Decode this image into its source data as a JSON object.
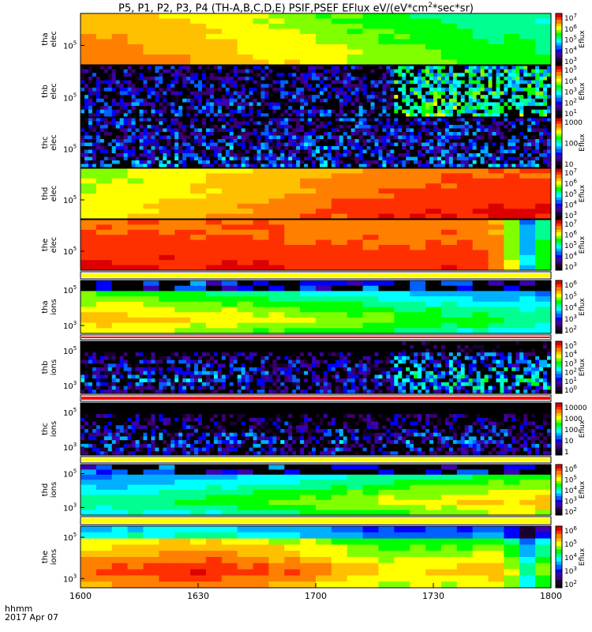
{
  "title_parts": [
    "P5, P1, P2, P3, P4 (TH-A,B,C,D,E) PSIF,PSEF EFlux eV/(eV*cm",
    "2",
    "*sec*sr)"
  ],
  "footer": {
    "hhmm": "hhmm",
    "date": "2017 Apr 07"
  },
  "colors": {
    "rainbow": [
      "#000000",
      "#1a0030",
      "#3a0070",
      "#3c00b0",
      "#0000ff",
      "#0060ff",
      "#00b0ff",
      "#00ffff",
      "#00ff90",
      "#00ff00",
      "#80ff00",
      "#ffff00",
      "#ffc000",
      "#ff8000",
      "#ff3000",
      "#dd0000"
    ],
    "divider_fill": "#ffff00",
    "divider_ions": "#ff0000"
  },
  "chart_data": {
    "type": "heatmap",
    "x_ticks": [
      "1600",
      "1630",
      "1700",
      "1730",
      "1800"
    ],
    "x_range": [
      1600,
      1800
    ],
    "cbar_label": "Eflux",
    "panels": [
      {
        "id": "tha-elec",
        "ylabel": [
          "tha",
          "elec"
        ],
        "ytick": [
          "10",
          "5"
        ],
        "cbar_ticks": [
          [
            "10",
            "7"
          ],
          [
            "10",
            "6"
          ],
          [
            "10",
            "5"
          ],
          [
            "10",
            "4"
          ],
          [
            "10",
            "3"
          ]
        ],
        "mean_level": [
          0.86,
          0.86,
          0.85,
          0.85,
          0.84,
          0.83,
          0.82,
          0.81,
          0.8,
          0.79,
          0.77,
          0.76,
          0.75,
          0.74,
          0.72,
          0.71,
          0.7,
          0.69,
          0.68,
          0.67,
          0.66,
          0.65,
          0.64,
          0.63,
          0.62,
          0.61,
          0.6,
          0.6,
          0.59,
          0.58
        ]
      },
      {
        "id": "thb-elec",
        "ylabel": [
          "thb",
          "elec"
        ],
        "ytick": [
          "10",
          "5"
        ],
        "cbar_ticks": [
          [
            "10",
            "5"
          ],
          [
            "10",
            "4"
          ],
          [
            "10",
            "3"
          ],
          [
            "10",
            "2"
          ],
          [
            "10",
            "1"
          ]
        ],
        "mean_level": [
          0.25,
          0.25,
          0.25,
          0.25,
          0.25,
          0.25,
          0.25,
          0.25,
          0.25,
          0.25,
          0.25,
          0.25,
          0.25,
          0.25,
          0.25,
          0.25,
          0.25,
          0.25,
          0.25,
          0.25,
          0.55,
          0.55,
          0.55,
          0.55,
          0.55,
          0.55,
          0.55,
          0.55,
          0.55,
          0.55
        ]
      },
      {
        "id": "thc-elec",
        "ylabel": [
          "thc",
          "elec"
        ],
        "ytick": [
          "10",
          "5"
        ],
        "cbar_ticks": [
          [
            "1000",
            ""
          ],
          [
            "100",
            ""
          ],
          [
            "10",
            ""
          ]
        ],
        "mean_level": [
          0.3,
          0.3,
          0.3,
          0.3,
          0.3,
          0.3,
          0.3,
          0.3,
          0.3,
          0.3,
          0.3,
          0.3,
          0.3,
          0.3,
          0.3,
          0.3,
          0.3,
          0.3,
          0.3,
          0.3,
          0.3,
          0.3,
          0.3,
          0.3,
          0.3,
          0.3,
          0.3,
          0.3,
          0.3,
          0.3
        ]
      },
      {
        "id": "thd-elec",
        "ylabel": [
          "thd",
          "elec"
        ],
        "ytick": [
          "10",
          "5"
        ],
        "cbar_ticks": [
          [
            "10",
            "7"
          ],
          [
            "10",
            "6"
          ],
          [
            "10",
            "5"
          ],
          [
            "10",
            "4"
          ],
          [
            "10",
            "3"
          ]
        ],
        "mean_level": [
          0.74,
          0.74,
          0.75,
          0.76,
          0.77,
          0.78,
          0.79,
          0.8,
          0.81,
          0.82,
          0.83,
          0.84,
          0.85,
          0.86,
          0.87,
          0.88,
          0.89,
          0.9,
          0.91,
          0.92,
          0.92,
          0.93,
          0.93,
          0.94,
          0.94,
          0.94,
          0.95,
          0.95,
          0.95,
          0.95
        ]
      },
      {
        "id": "the-elec",
        "ylabel": [
          "the",
          "elec"
        ],
        "ytick": [
          "10",
          "5"
        ],
        "cbar_ticks": [
          [
            "10",
            "7"
          ],
          [
            "10",
            "6"
          ],
          [
            "10",
            "5"
          ],
          [
            "10",
            "4"
          ],
          [
            "10",
            "3"
          ]
        ],
        "mean_level": [
          0.94,
          0.94,
          0.94,
          0.94,
          0.94,
          0.94,
          0.94,
          0.94,
          0.94,
          0.94,
          0.94,
          0.94,
          0.94,
          0.93,
          0.92,
          0.92,
          0.92,
          0.92,
          0.92,
          0.92,
          0.92,
          0.92,
          0.92,
          0.92,
          0.92,
          0.9,
          0.88,
          0.7,
          0.45,
          0.6
        ]
      },
      {
        "id": "tha-ions",
        "ylabel": [
          "tha",
          "ions"
        ],
        "ytick": [
          "10",
          "5"
        ],
        "ytick2": [
          "10",
          "3"
        ],
        "cbar_ticks": [
          [
            "10",
            "6"
          ],
          [
            "10",
            "5"
          ],
          [
            "10",
            "4"
          ],
          [
            "10",
            "3"
          ],
          [
            "10",
            "2"
          ]
        ],
        "mean_level": [
          0.8,
          0.8,
          0.79,
          0.78,
          0.78,
          0.77,
          0.76,
          0.75,
          0.74,
          0.74,
          0.73,
          0.72,
          0.71,
          0.7,
          0.69,
          0.68,
          0.67,
          0.66,
          0.65,
          0.65,
          0.64,
          0.63,
          0.62,
          0.61,
          0.6,
          0.6,
          0.59,
          0.58,
          0.57,
          0.56
        ]
      },
      {
        "id": "thb-ions",
        "ylabel": [
          "thb",
          "ions"
        ],
        "ytick": [
          "10",
          "5"
        ],
        "ytick2": [
          "10",
          "3"
        ],
        "cbar_ticks": [
          [
            "10",
            "5"
          ],
          [
            "10",
            "4"
          ],
          [
            "10",
            "3"
          ],
          [
            "10",
            "2"
          ],
          [
            "10",
            "1"
          ],
          [
            "10",
            "0"
          ]
        ],
        "mean_level": [
          0.3,
          0.3,
          0.3,
          0.3,
          0.3,
          0.3,
          0.3,
          0.3,
          0.3,
          0.3,
          0.3,
          0.3,
          0.3,
          0.3,
          0.3,
          0.3,
          0.3,
          0.3,
          0.3,
          0.3,
          0.45,
          0.45,
          0.45,
          0.45,
          0.45,
          0.45,
          0.45,
          0.45,
          0.45,
          0.45
        ]
      },
      {
        "id": "thc-ions",
        "ylabel": [
          "thc",
          "ions"
        ],
        "ytick": [
          "10",
          "5"
        ],
        "ytick2": [
          "10",
          "3"
        ],
        "cbar_ticks": [
          [
            "10000",
            ""
          ],
          [
            "1000",
            ""
          ],
          [
            "100",
            ""
          ],
          [
            "10",
            ""
          ],
          [
            "1",
            ""
          ]
        ],
        "mean_level": [
          0.28,
          0.28,
          0.28,
          0.28,
          0.28,
          0.28,
          0.28,
          0.28,
          0.28,
          0.28,
          0.28,
          0.28,
          0.28,
          0.28,
          0.28,
          0.28,
          0.28,
          0.28,
          0.28,
          0.28,
          0.28,
          0.28,
          0.28,
          0.28,
          0.28,
          0.28,
          0.28,
          0.28,
          0.28,
          0.28
        ]
      },
      {
        "id": "thd-ions",
        "ylabel": [
          "thd",
          "ions"
        ],
        "ytick": [
          "10",
          "5"
        ],
        "ytick2": [
          "10",
          "3"
        ],
        "cbar_ticks": [
          [
            "10",
            "6"
          ],
          [
            "10",
            "5"
          ],
          [
            "10",
            "4"
          ],
          [
            "10",
            "3"
          ],
          [
            "10",
            "2"
          ]
        ],
        "mean_level": [
          0.55,
          0.55,
          0.56,
          0.57,
          0.57,
          0.58,
          0.59,
          0.6,
          0.6,
          0.61,
          0.62,
          0.63,
          0.63,
          0.64,
          0.65,
          0.66,
          0.67,
          0.68,
          0.69,
          0.7,
          0.71,
          0.72,
          0.73,
          0.74,
          0.75,
          0.76,
          0.77,
          0.77,
          0.78,
          0.79
        ]
      },
      {
        "id": "the-ions",
        "ylabel": [
          "the",
          "ions"
        ],
        "ytick": [
          "10",
          "5"
        ],
        "ytick2": [
          "10",
          "3"
        ],
        "cbar_ticks": [
          [
            "10",
            "6"
          ],
          [
            "10",
            "5"
          ],
          [
            "10",
            "4"
          ],
          [
            "10",
            "3"
          ],
          [
            "10",
            "2"
          ]
        ],
        "mean_level": [
          0.88,
          0.89,
          0.9,
          0.91,
          0.92,
          0.93,
          0.93,
          0.93,
          0.93,
          0.92,
          0.91,
          0.9,
          0.89,
          0.88,
          0.86,
          0.84,
          0.82,
          0.8,
          0.78,
          0.76,
          0.76,
          0.76,
          0.78,
          0.78,
          0.78,
          0.8,
          0.82,
          0.72,
          0.55,
          0.66
        ]
      }
    ]
  }
}
